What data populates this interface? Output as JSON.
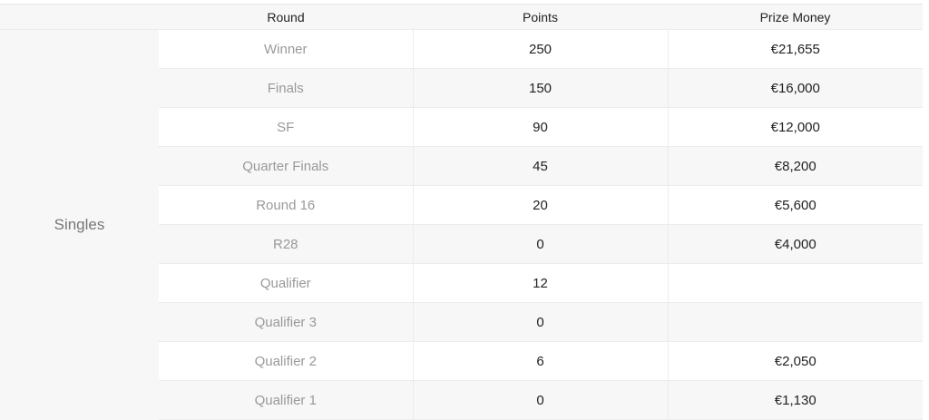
{
  "header": {
    "category": "",
    "round": "Round",
    "points": "Points",
    "prize": "Prize Money"
  },
  "category": "Singles",
  "rows": [
    {
      "round": "Winner",
      "points": "250",
      "prize": "€21,655"
    },
    {
      "round": "Finals",
      "points": "150",
      "prize": "€16,000"
    },
    {
      "round": "SF",
      "points": "90",
      "prize": "€12,000"
    },
    {
      "round": "Quarter Finals",
      "points": "45",
      "prize": "€8,200"
    },
    {
      "round": "Round 16",
      "points": "20",
      "prize": "€5,600"
    },
    {
      "round": "R28",
      "points": "0",
      "prize": "€4,000"
    },
    {
      "round": "Qualifier",
      "points": "12",
      "prize": ""
    },
    {
      "round": "Qualifier 3",
      "points": "0",
      "prize": ""
    },
    {
      "round": "Qualifier 2",
      "points": "6",
      "prize": "€2,050"
    },
    {
      "round": "Qualifier 1",
      "points": "0",
      "prize": "€1,130"
    }
  ]
}
